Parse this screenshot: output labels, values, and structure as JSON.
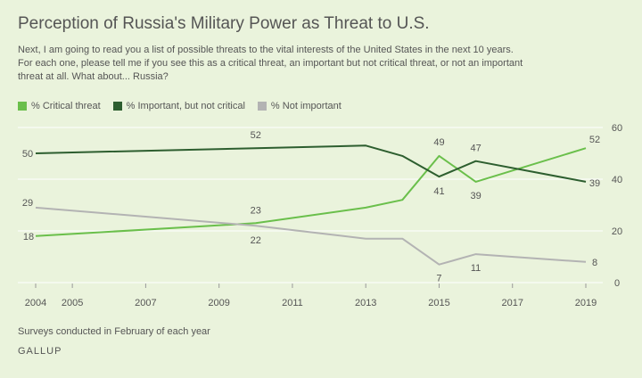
{
  "title": "Perception of Russia's Military Power as Threat to U.S.",
  "subtitle": "Next, I am going to read you a list of possible threats to the vital interests of the United States in the next 10 years. For each one, please tell me if you see this as a critical threat, an important but not critical threat, or not an important threat at all. What about... Russia?",
  "footnote": "Surveys conducted in February of each year",
  "brand": "GALLUP",
  "colors": {
    "critical": "#6abf4b",
    "important": "#2d5e2f",
    "not_important": "#b3b3b3",
    "axis_text": "#555555",
    "grid": "#ffffff"
  },
  "chart_data": {
    "type": "line",
    "title": "Perception of Russia's Military Power as Threat to U.S.",
    "x_ticks": [
      2004,
      2005,
      2007,
      2009,
      2011,
      2013,
      2015,
      2017,
      2019
    ],
    "xlim": [
      2004,
      2019
    ],
    "ylim": [
      0,
      60
    ],
    "y_ticks": [
      0,
      20,
      40,
      60
    ],
    "grid": true,
    "legend_position": "top-left",
    "series": [
      {
        "name": "% Critical threat",
        "color_key": "critical",
        "points": [
          {
            "x": 2004,
            "y": 18,
            "label": "18"
          },
          {
            "x": 2010,
            "y": 23,
            "label": "23"
          },
          {
            "x": 2013,
            "y": 29
          },
          {
            "x": 2014,
            "y": 32
          },
          {
            "x": 2015,
            "y": 49,
            "label": "49"
          },
          {
            "x": 2016,
            "y": 39,
            "label": "39"
          },
          {
            "x": 2019,
            "y": 52,
            "label": "52"
          }
        ]
      },
      {
        "name": "% Important, but not critical",
        "color_key": "important",
        "points": [
          {
            "x": 2004,
            "y": 50,
            "label": "50"
          },
          {
            "x": 2010,
            "y": 52,
            "label": "52"
          },
          {
            "x": 2013,
            "y": 53
          },
          {
            "x": 2014,
            "y": 49
          },
          {
            "x": 2015,
            "y": 41,
            "label": "41"
          },
          {
            "x": 2016,
            "y": 47,
            "label": "47"
          },
          {
            "x": 2019,
            "y": 39,
            "label": "39"
          }
        ]
      },
      {
        "name": "% Not important",
        "color_key": "not_important",
        "points": [
          {
            "x": 2004,
            "y": 29,
            "label": "29"
          },
          {
            "x": 2010,
            "y": 22,
            "label": "22"
          },
          {
            "x": 2013,
            "y": 17
          },
          {
            "x": 2014,
            "y": 17
          },
          {
            "x": 2015,
            "y": 7,
            "label": "7"
          },
          {
            "x": 2016,
            "y": 11,
            "label": "11"
          },
          {
            "x": 2019,
            "y": 8,
            "label": "8"
          }
        ]
      }
    ]
  }
}
